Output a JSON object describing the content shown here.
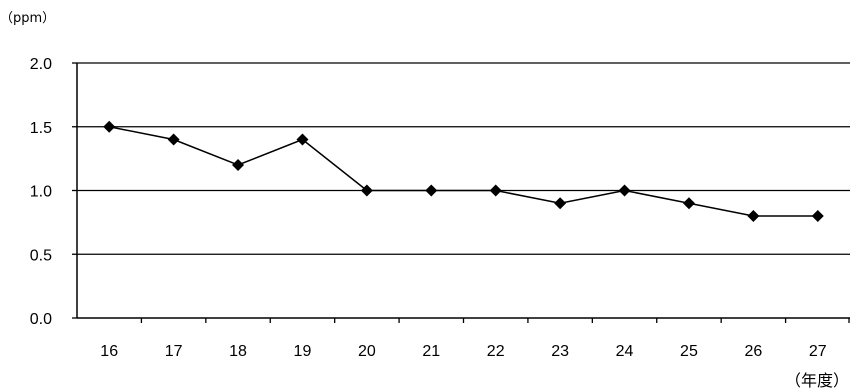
{
  "chart_data": {
    "type": "line",
    "title": "",
    "ylabel": "（ppm）",
    "xlabel": "（年度）",
    "categories": [
      "16",
      "17",
      "18",
      "19",
      "20",
      "21",
      "22",
      "23",
      "24",
      "25",
      "26",
      "27"
    ],
    "series": [
      {
        "values": [
          1.5,
          1.4,
          1.2,
          1.4,
          1.0,
          1.0,
          1.0,
          0.9,
          1.0,
          0.9,
          0.8,
          0.8
        ]
      }
    ],
    "ylim": [
      0.0,
      2.0
    ],
    "yticks": [
      "0.0",
      "0.5",
      "1.0",
      "1.5",
      "2.0"
    ],
    "grid": true,
    "legend": "none",
    "marker": "diamond",
    "line_color": "#000000"
  }
}
